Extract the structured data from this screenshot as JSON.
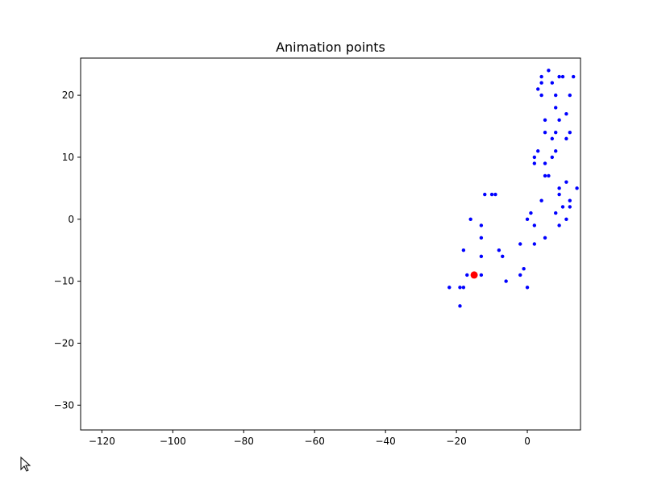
{
  "chart_data": {
    "type": "scatter",
    "title": "Animation points",
    "xlabel": "",
    "ylabel": "",
    "xlim": [
      -126,
      15
    ],
    "ylim": [
      -34,
      26
    ],
    "xticks": [
      -120,
      -100,
      -80,
      -60,
      -40,
      -20,
      0
    ],
    "yticks": [
      -30,
      -20,
      -10,
      0,
      10,
      20
    ],
    "grid": false,
    "colors": {
      "points": "#0000ff",
      "highlight": "#ff0000"
    },
    "series": [
      {
        "values": [
          [
            6,
            24
          ],
          [
            4,
            23
          ],
          [
            9,
            23
          ],
          [
            10,
            23
          ],
          [
            13,
            23
          ],
          [
            4,
            22
          ],
          [
            7,
            22
          ],
          [
            3,
            21
          ],
          [
            4,
            20
          ],
          [
            8,
            20
          ],
          [
            12,
            20
          ],
          [
            8,
            18
          ],
          [
            11,
            17
          ],
          [
            5,
            16
          ],
          [
            9,
            16
          ],
          [
            5,
            14
          ],
          [
            8,
            14
          ],
          [
            12,
            14
          ],
          [
            7,
            13
          ],
          [
            11,
            13
          ],
          [
            3,
            11
          ],
          [
            8,
            11
          ],
          [
            2,
            10
          ],
          [
            7,
            10
          ],
          [
            2,
            9
          ],
          [
            5,
            9
          ],
          [
            5,
            7
          ],
          [
            6,
            7
          ],
          [
            11,
            6
          ],
          [
            14,
            5
          ],
          [
            9,
            5
          ],
          [
            9,
            4
          ],
          [
            -12,
            4
          ],
          [
            -10,
            4
          ],
          [
            -9,
            4
          ],
          [
            4,
            3
          ],
          [
            12,
            3
          ],
          [
            10,
            2
          ],
          [
            12,
            2
          ],
          [
            1,
            1
          ],
          [
            8,
            1
          ],
          [
            -16,
            0
          ],
          [
            0,
            0
          ],
          [
            11,
            0
          ],
          [
            -13,
            -1
          ],
          [
            2,
            -1
          ],
          [
            9,
            -1
          ],
          [
            -13,
            -3
          ],
          [
            5,
            -3
          ],
          [
            -2,
            -4
          ],
          [
            2,
            -4
          ],
          [
            -18,
            -5
          ],
          [
            -8,
            -5
          ],
          [
            -13,
            -6
          ],
          [
            -7,
            -6
          ],
          [
            -1,
            -8
          ],
          [
            -17,
            -9
          ],
          [
            -13,
            -9
          ],
          [
            -2,
            -9
          ],
          [
            -6,
            -10
          ],
          [
            -22,
            -11
          ],
          [
            -19,
            -11
          ],
          [
            -18,
            -11
          ],
          [
            0,
            -11
          ],
          [
            -19,
            -14
          ]
        ]
      },
      {
        "values": [
          [
            -15,
            -9
          ]
        ]
      }
    ]
  }
}
